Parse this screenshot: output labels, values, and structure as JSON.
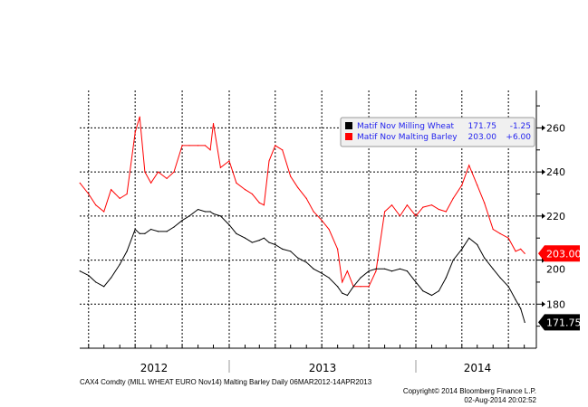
{
  "chart_data": {
    "type": "line",
    "title": "",
    "xlabel": "",
    "ylabel": "",
    "x_range": [
      "2012-03-15",
      "2014-08-02"
    ],
    "ylim": [
      160,
      277
    ],
    "y_ticks": [
      180,
      200,
      220,
      240,
      260
    ],
    "x_tick_labels": [
      "2012",
      "2013",
      "2014"
    ],
    "grid": true,
    "legend_placement": "top-right",
    "axis_side": "right",
    "dates": [
      "2012-03-15",
      "2012-04-01",
      "2012-04-15",
      "2012-05-01",
      "2012-05-15",
      "2012-06-01",
      "2012-06-15",
      "2012-07-01",
      "2012-07-10",
      "2012-07-20",
      "2012-08-01",
      "2012-08-15",
      "2012-09-01",
      "2012-09-15",
      "2012-10-01",
      "2012-10-15",
      "2012-11-01",
      "2012-11-15",
      "2012-11-25",
      "2012-12-01",
      "2012-12-15",
      "2013-01-01",
      "2013-01-15",
      "2013-02-01",
      "2013-02-15",
      "2013-03-01",
      "2013-03-10",
      "2013-03-20",
      "2013-04-01",
      "2013-04-15",
      "2013-05-01",
      "2013-05-15",
      "2013-06-01",
      "2013-06-15",
      "2013-07-01",
      "2013-07-15",
      "2013-08-01",
      "2013-08-10",
      "2013-08-20",
      "2013-09-01",
      "2013-09-15",
      "2013-10-01",
      "2013-10-15",
      "2013-11-01",
      "2013-11-15",
      "2013-12-01",
      "2013-12-15",
      "2014-01-01",
      "2014-01-15",
      "2014-02-01",
      "2014-02-15",
      "2014-03-01",
      "2014-03-15",
      "2014-04-01",
      "2014-04-15",
      "2014-05-01",
      "2014-05-15",
      "2014-06-01",
      "2014-06-15",
      "2014-07-01",
      "2014-07-15",
      "2014-07-25",
      "2014-08-02"
    ],
    "series": [
      {
        "name": "Matif Nov Milling Wheat",
        "color": "#000000",
        "last": "171.75",
        "change": "-1.25",
        "values": [
          195,
          193,
          190,
          188,
          192,
          198,
          204,
          214,
          212,
          212,
          214,
          213,
          213,
          215,
          218,
          220,
          223,
          222,
          222,
          221,
          220,
          216,
          212,
          210,
          208,
          209,
          210,
          208,
          207,
          205,
          204,
          201,
          199,
          196,
          194,
          192,
          188,
          185,
          184,
          188,
          192,
          195,
          196,
          196,
          195,
          196,
          195,
          190,
          186,
          184,
          186,
          192,
          200,
          205,
          210,
          207,
          201,
          196,
          192,
          188,
          182,
          178,
          171.75
        ]
      },
      {
        "name": "Matif Nov Malting Barley",
        "color": "#ff0000",
        "last": "203.00",
        "change": "+6.00",
        "values": [
          235,
          230,
          225,
          222,
          232,
          228,
          230,
          258,
          265,
          240,
          235,
          240,
          237,
          240,
          252,
          252,
          252,
          252,
          250,
          262,
          242,
          245,
          235,
          232,
          230,
          226,
          225,
          245,
          252,
          250,
          238,
          233,
          228,
          222,
          218,
          214,
          205,
          190,
          195,
          188,
          188,
          188,
          195,
          222,
          225,
          220,
          225,
          220,
          224,
          225,
          223,
          222,
          228,
          234,
          243,
          234,
          226,
          214,
          212,
          210,
          204,
          205,
          203
        ]
      }
    ]
  },
  "footer": {
    "left": "CAX4 Comdty (MILL WHEAT EURO   Nov14) Malting Barley  Daily 06MAR2012-14APR2013",
    "copyright": "Copyright© 2014 Bloomberg Finance L.P.",
    "timestamp": "02-Aug-2014 20:02:52"
  }
}
